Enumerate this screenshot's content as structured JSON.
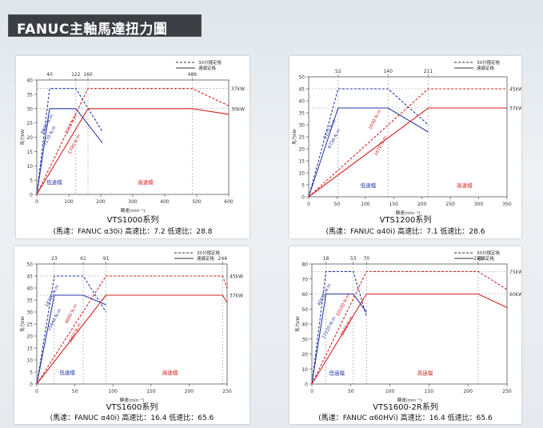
{
  "page": {
    "title": "FANUC主軸馬達扭力圖"
  },
  "legend": {
    "dashed": "30分鐘定格",
    "solid": "連續定格"
  },
  "chart_data": [
    {
      "type": "line",
      "title": "VTS1000系列",
      "subtitle": "(馬達：FANUC α30i) 高速比：7.2  低速比：28.8",
      "xlabel": "轉速(min⁻¹)",
      "ylabel": "馬力kW",
      "xlim": [
        0,
        600
      ],
      "ylim": [
        0,
        40
      ],
      "xticks": [
        0,
        100,
        200,
        300,
        400,
        500,
        600
      ],
      "yticks": [
        0,
        5,
        10,
        15,
        20,
        25,
        30,
        35,
        40
      ],
      "top_ticks": [
        {
          "x": 40,
          "label": "40"
        },
        {
          "x": 122,
          "label": "122"
        },
        {
          "x": 160,
          "label": "160"
        },
        {
          "x": 486,
          "label": "486"
        }
      ],
      "right_labels": [
        {
          "y": 37,
          "label": "37kW"
        },
        {
          "y": 30,
          "label": "30kW"
        }
      ],
      "vlines": [
        122,
        160,
        486
      ],
      "region_labels": [
        {
          "x": 55,
          "y": 2,
          "label": "低速檔",
          "color": "#2a3aa6"
        },
        {
          "x": 340,
          "y": 2,
          "label": "高速檔",
          "color": "#d62222"
        }
      ],
      "series": [
        {
          "style": "dashed",
          "color": "#2a3aa6",
          "points": [
            [
              0,
              0
            ],
            [
              40,
              37
            ],
            [
              122,
              37
            ],
            [
              205,
              22
            ]
          ]
        },
        {
          "style": "solid",
          "color": "#2a3aa6",
          "points": [
            [
              0,
              0
            ],
            [
              40,
              30
            ],
            [
              122,
              30
            ],
            [
              205,
              18
            ]
          ]
        },
        {
          "style": "dashed",
          "color": "#d62222",
          "points": [
            [
              0,
              0
            ],
            [
              160,
              37
            ],
            [
              486,
              37
            ],
            [
              600,
              31
            ]
          ]
        },
        {
          "style": "solid",
          "color": "#d62222",
          "points": [
            [
              0,
              0
            ],
            [
              160,
              30
            ],
            [
              486,
              30
            ],
            [
              600,
              28
            ]
          ]
        }
      ],
      "torque_labels": [
        {
          "x": 20,
          "y": 21,
          "label": "8830 N.m",
          "color": "#2a3aa6"
        },
        {
          "x": 28,
          "y": 17,
          "label": "7170 N.m",
          "color": "#2a3aa6"
        },
        {
          "x": 95,
          "y": 21,
          "label": "2210 N.m",
          "color": "#d62222"
        },
        {
          "x": 105,
          "y": 14,
          "label": "1790 N.m",
          "color": "#d62222"
        }
      ]
    },
    {
      "type": "line",
      "title": "VTS1200系列",
      "subtitle": "(馬達：FANUC α40i) 高速比：7.1  低速比：28.6",
      "xlabel": "轉速(min⁻¹)",
      "ylabel": "馬力kW",
      "xlim": [
        0,
        350
      ],
      "ylim": [
        0,
        50
      ],
      "xticks": [
        0,
        50,
        100,
        150,
        200,
        250,
        300,
        350
      ],
      "yticks": [
        0,
        5,
        10,
        15,
        20,
        25,
        30,
        35,
        40,
        45,
        50
      ],
      "top_ticks": [
        {
          "x": 52,
          "label": "52"
        },
        {
          "x": 140,
          "label": "140"
        },
        {
          "x": 211,
          "label": "211"
        }
      ],
      "right_labels": [
        {
          "y": 45,
          "label": "45kW"
        },
        {
          "y": 37,
          "label": "37kW"
        }
      ],
      "vlines": [
        52,
        140,
        211
      ],
      "region_labels": [
        {
          "x": 105,
          "y": 2,
          "label": "低速檔",
          "color": "#2a3aa6"
        },
        {
          "x": 275,
          "y": 2,
          "label": "高速檔",
          "color": "#d62222"
        }
      ],
      "series": [
        {
          "style": "dashed",
          "color": "#2a3aa6",
          "points": [
            [
              0,
              0
            ],
            [
              52,
              45
            ],
            [
              140,
              45
            ],
            [
              211,
              30
            ]
          ]
        },
        {
          "style": "solid",
          "color": "#2a3aa6",
          "points": [
            [
              0,
              0
            ],
            [
              52,
              37
            ],
            [
              140,
              37
            ],
            [
              211,
              27
            ]
          ]
        },
        {
          "style": "dashed",
          "color": "#d62222",
          "points": [
            [
              0,
              0
            ],
            [
              211,
              45
            ],
            [
              350,
              45
            ]
          ]
        },
        {
          "style": "solid",
          "color": "#d62222",
          "points": [
            [
              0,
              0
            ],
            [
              211,
              37
            ],
            [
              350,
              37
            ]
          ]
        }
      ],
      "torque_labels": [
        {
          "x": 30,
          "y": 24,
          "label": "8170 N.m",
          "color": "#2a3aa6"
        },
        {
          "x": 38,
          "y": 20,
          "label": "6730 N.m",
          "color": "#2a3aa6"
        },
        {
          "x": 110,
          "y": 28,
          "label": "2030 N.m",
          "color": "#d62222"
        },
        {
          "x": 120,
          "y": 17,
          "label": "1670 N.m",
          "color": "#d62222"
        }
      ]
    },
    {
      "type": "line",
      "title": "VTS1600系列",
      "subtitle": "(馬達：FANUC α40i) 高速比：16.4  低速比：65.6",
      "xlabel": "轉速(min⁻¹)",
      "ylabel": "馬力kW",
      "xlim": [
        0,
        250
      ],
      "ylim": [
        0,
        50
      ],
      "xticks": [
        0,
        50,
        100,
        150,
        200,
        250
      ],
      "yticks": [
        0,
        5,
        10,
        15,
        20,
        25,
        30,
        35,
        40,
        45,
        50
      ],
      "top_ticks": [
        {
          "x": 23,
          "label": "23"
        },
        {
          "x": 61,
          "label": "61"
        },
        {
          "x": 91,
          "label": "91"
        },
        {
          "x": 244,
          "label": "244"
        }
      ],
      "right_labels": [
        {
          "y": 45,
          "label": "45kW"
        },
        {
          "y": 37,
          "label": "37kW"
        }
      ],
      "vlines": [
        23,
        61,
        91,
        244
      ],
      "region_labels": [
        {
          "x": 40,
          "y": 2,
          "label": "低速檔",
          "color": "#2a3aa6"
        },
        {
          "x": 175,
          "y": 2,
          "label": "高速檔",
          "color": "#d62222"
        }
      ],
      "series": [
        {
          "style": "dashed",
          "color": "#2a3aa6",
          "points": [
            [
              0,
              0
            ],
            [
              23,
              45
            ],
            [
              61,
              45
            ],
            [
              91,
              30
            ]
          ]
        },
        {
          "style": "solid",
          "color": "#2a3aa6",
          "points": [
            [
              0,
              0
            ],
            [
              23,
              37
            ],
            [
              61,
              37
            ],
            [
              91,
              33
            ]
          ]
        },
        {
          "style": "dashed",
          "color": "#d62222",
          "points": [
            [
              0,
              0
            ],
            [
              91,
              45
            ],
            [
              244,
              45
            ],
            [
              250,
              40
            ]
          ]
        },
        {
          "style": "solid",
          "color": "#d62222",
          "points": [
            [
              0,
              0
            ],
            [
              91,
              37
            ],
            [
              244,
              37
            ],
            [
              250,
              34
            ]
          ]
        }
      ],
      "torque_labels": [
        {
          "x": 14,
          "y": 32,
          "label": "18780 N.m",
          "color": "#2a3aa6"
        },
        {
          "x": 17,
          "y": 22,
          "label": "15440 N.m",
          "color": "#2a3aa6"
        },
        {
          "x": 40,
          "y": 25,
          "label": "4690 N.m",
          "color": "#d62222"
        },
        {
          "x": 45,
          "y": 17,
          "label": "3860 N.m",
          "color": "#d62222"
        }
      ]
    },
    {
      "type": "line",
      "title": "VTS1600-2R系列",
      "subtitle": "(馬達：FANUC α60HVi) 高速比：16.4  低速比：65.6",
      "xlabel": "轉速(min⁻¹)",
      "ylabel": "馬力kW",
      "xlim": [
        0,
        250
      ],
      "ylim": [
        0,
        80
      ],
      "xticks": [
        0,
        50,
        100,
        150,
        200,
        250
      ],
      "yticks": [
        0,
        10,
        20,
        30,
        40,
        50,
        60,
        70,
        80
      ],
      "top_ticks": [
        {
          "x": 18,
          "label": "18"
        },
        {
          "x": 53,
          "label": "53"
        },
        {
          "x": 70,
          "label": "70"
        },
        {
          "x": 213,
          "label": "213"
        }
      ],
      "right_labels": [
        {
          "y": 75,
          "label": "75kW"
        },
        {
          "y": 60,
          "label": "60kW"
        }
      ],
      "vlines": [
        18,
        53,
        70,
        213
      ],
      "region_labels": [
        {
          "x": 32,
          "y": 3,
          "label": "低速檔",
          "color": "#2a3aa6"
        },
        {
          "x": 145,
          "y": 3,
          "label": "高速檔",
          "color": "#d62222"
        }
      ],
      "series": [
        {
          "style": "dashed",
          "color": "#2a3aa6",
          "points": [
            [
              0,
              0
            ],
            [
              18,
              75
            ],
            [
              53,
              75
            ],
            [
              70,
              45
            ]
          ]
        },
        {
          "style": "solid",
          "color": "#2a3aa6",
          "points": [
            [
              0,
              0
            ],
            [
              18,
              60
            ],
            [
              53,
              60
            ],
            [
              70,
              48
            ]
          ]
        },
        {
          "style": "dashed",
          "color": "#d62222",
          "points": [
            [
              0,
              0
            ],
            [
              70,
              75
            ],
            [
              213,
              75
            ],
            [
              250,
              63
            ]
          ]
        },
        {
          "style": "solid",
          "color": "#d62222",
          "points": [
            [
              0,
              0
            ],
            [
              70,
              60
            ],
            [
              213,
              60
            ],
            [
              250,
              51
            ]
          ]
        }
      ],
      "torque_labels": [
        {
          "x": 10,
          "y": 52,
          "label": "40010 N.m",
          "color": "#2a3aa6"
        },
        {
          "x": 16,
          "y": 30,
          "label": "27220 N.m",
          "color": "#2a3aa6"
        },
        {
          "x": 34,
          "y": 45,
          "label": "10100 N.m",
          "color": "#d62222"
        },
        {
          "x": 40,
          "y": 32,
          "label": "8600 N.m",
          "color": "#d62222"
        }
      ]
    }
  ]
}
